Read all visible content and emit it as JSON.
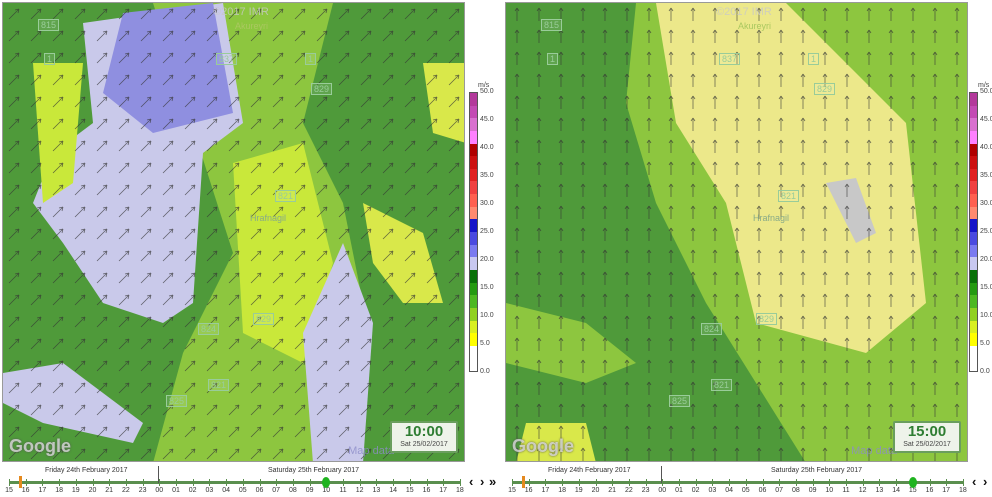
{
  "legend": {
    "unit": "m/s",
    "ticks": [
      "50.0",
      "45.0",
      "40.0",
      "35.0",
      "30.0",
      "25.0",
      "20.0",
      "15.0",
      "10.0",
      "5.0",
      "0.0"
    ],
    "colors": [
      "#b3399b",
      "#c34ab4",
      "#d870cf",
      "#ff80ff",
      "#b00000",
      "#cc1010",
      "#e02020",
      "#f04040",
      "#ff6050",
      "#ff8a70",
      "#1515c8",
      "#4a4ae0",
      "#7a7af0",
      "#c8c8f0",
      "#087008",
      "#239a10",
      "#4cb820",
      "#90d020",
      "#d8f020",
      "#ffff00",
      "#ffffff",
      "#ffffff"
    ]
  },
  "map_labels": {
    "copyright": "©2017 IMR",
    "town": "Akureyri",
    "place": "Hrafnagil",
    "google": "Google",
    "map_data": "Map data",
    "roads": [
      "815",
      "1",
      "837",
      "1",
      "829",
      "821",
      "824",
      "829",
      "821",
      "825"
    ]
  },
  "panels": [
    {
      "time": "10:00",
      "date": "Sat 25/02/2017",
      "selected_hour_index": 19
    },
    {
      "time": "15:00",
      "date": "Sat 25/02/2017",
      "selected_hour_index": 24
    }
  ],
  "timeline": {
    "day1": "Friday 24th February 2017",
    "day2": "Saturday 25th February 2017",
    "hours": [
      "15",
      "16",
      "17",
      "18",
      "19",
      "20",
      "21",
      "22",
      "23",
      "00",
      "01",
      "02",
      "03",
      "04",
      "05",
      "06",
      "07",
      "08",
      "09",
      "10",
      "11",
      "12",
      "13",
      "14",
      "15",
      "16",
      "17",
      "18"
    ]
  },
  "nav": {
    "prev": "‹",
    "next": "›",
    "fast_forward": "»"
  },
  "colors": {
    "accent": "#2e7d32",
    "now_marker": "#e58a1f",
    "selected_marker": "#1fb31f"
  }
}
